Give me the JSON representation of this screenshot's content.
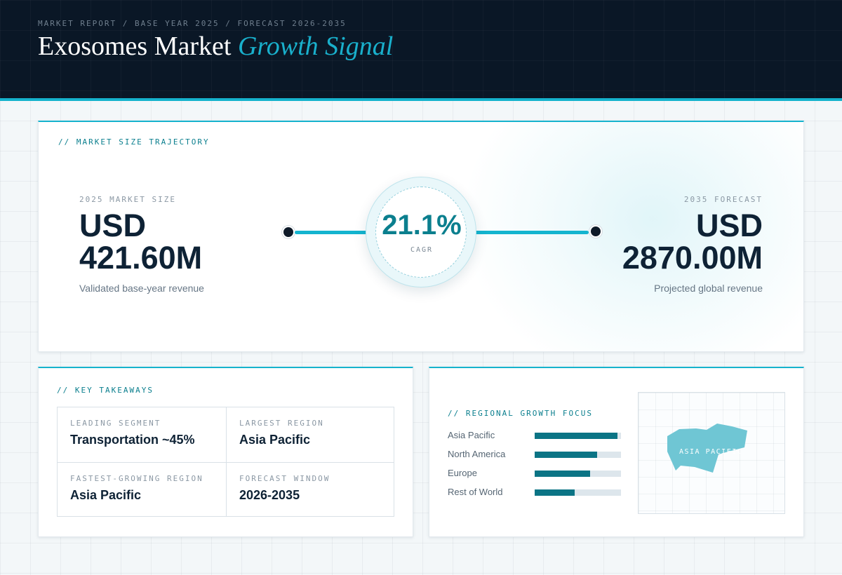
{
  "header": {
    "breadcrumb": "MARKET REPORT / BASE YEAR 2025 / FORECAST 2026-2035",
    "title_main": "Exosomes Market",
    "title_accent": "Growth Signal"
  },
  "trajectory": {
    "label": "// MARKET SIZE TRAJECTORY",
    "base": {
      "caption": "2025 MARKET SIZE",
      "currency": "USD",
      "value": "421.60M",
      "subtitle": "Validated base-year revenue"
    },
    "forecast": {
      "caption": "2035 FORECAST",
      "currency": "USD",
      "value": "2870.00M",
      "subtitle": "Projected global revenue"
    },
    "cagr": {
      "value": "21.1%",
      "label": "CAGR"
    }
  },
  "takeaways": {
    "label": "// KEY TAKEAWAYS",
    "items": [
      {
        "caption": "LEADING SEGMENT",
        "value": "Transportation ~45%"
      },
      {
        "caption": "LARGEST REGION",
        "value": "Asia Pacific"
      },
      {
        "caption": "FASTEST-GROWING REGION",
        "value": "Asia Pacific"
      },
      {
        "caption": "FORECAST WINDOW",
        "value": "2026-2035"
      }
    ]
  },
  "regional": {
    "label": "// REGIONAL GROWTH FOCUS",
    "regions": [
      {
        "name": "Asia Pacific",
        "level": 0.96
      },
      {
        "name": "North America",
        "level": 0.72
      },
      {
        "name": "Europe",
        "level": 0.64
      },
      {
        "name": "Rest of World",
        "level": 0.46
      }
    ],
    "map_label": "ASIA PACIFIC"
  },
  "colors": {
    "accent": "#16b3cd",
    "bar_fill": "#0b7485",
    "header_bg": "#0a1726",
    "map_shape": "#6fc6d4"
  }
}
